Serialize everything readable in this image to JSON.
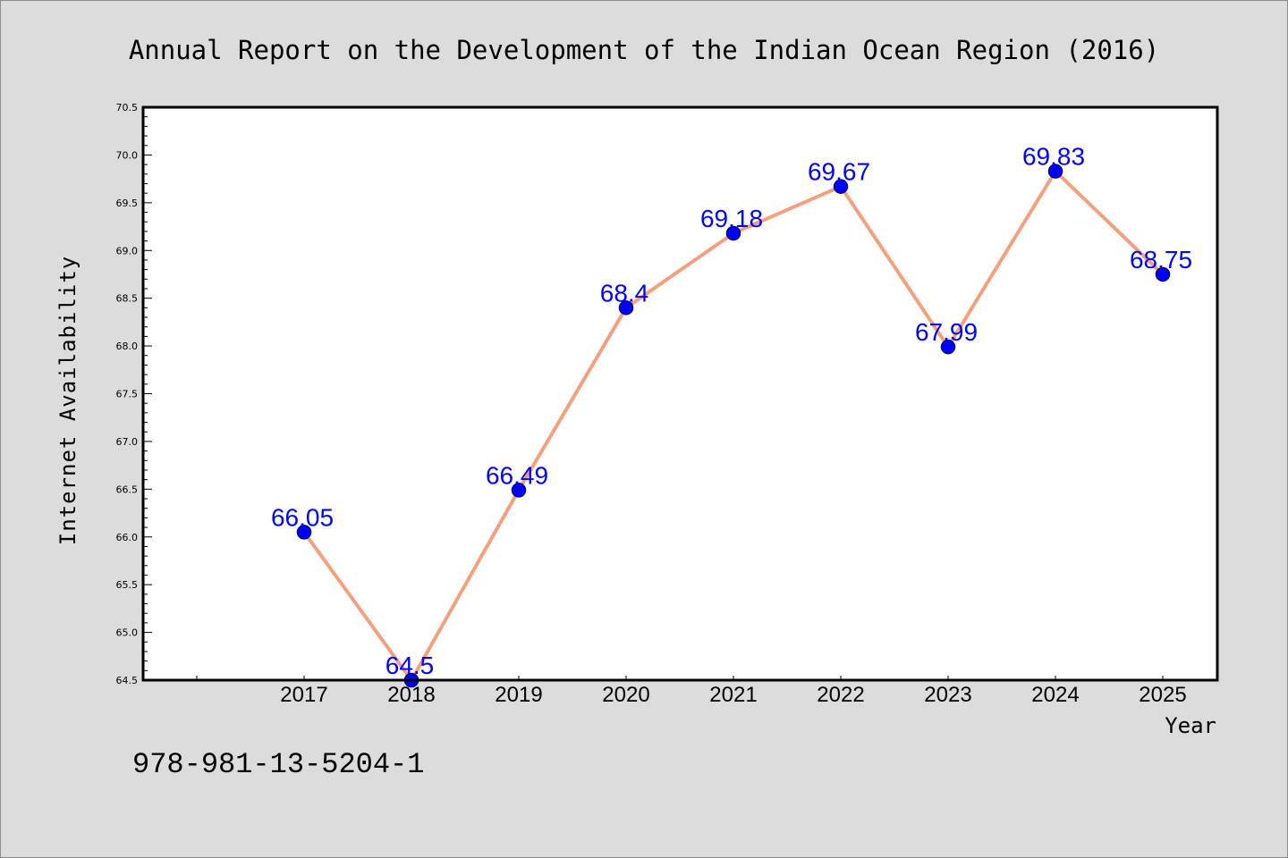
{
  "chart_data": {
    "type": "line",
    "title": "Annual Report on the Development of the Indian Ocean Region (2016)",
    "xlabel": "Year",
    "ylabel": "Internet Availability",
    "x": [
      "2017",
      "2018",
      "2019",
      "2020",
      "2021",
      "2022",
      "2023",
      "2024",
      "2025"
    ],
    "series": [
      {
        "values": [
          66.05,
          64.5,
          66.49,
          68.4,
          69.18,
          69.67,
          67.99,
          69.83,
          68.75
        ],
        "data_labels": [
          "66.05",
          "64.5",
          "66.49",
          "68.4",
          "69.18",
          "69.67",
          "67.99",
          "69.83",
          "68.75"
        ],
        "line_color": "#f4a07e",
        "marker_color": "#0000ff"
      }
    ],
    "ylim": [
      64.5,
      70.5
    ],
    "yticks": [
      "64.5",
      "65.0",
      "65.5",
      "66.0",
      "66.5",
      "67.0",
      "67.5",
      "68.0",
      "68.5",
      "69.0",
      "69.5",
      "70.0",
      "70.5"
    ],
    "grid": false,
    "label_color": "#0000ff"
  },
  "footer": {
    "isbn": "978-981-13-5204-1"
  }
}
